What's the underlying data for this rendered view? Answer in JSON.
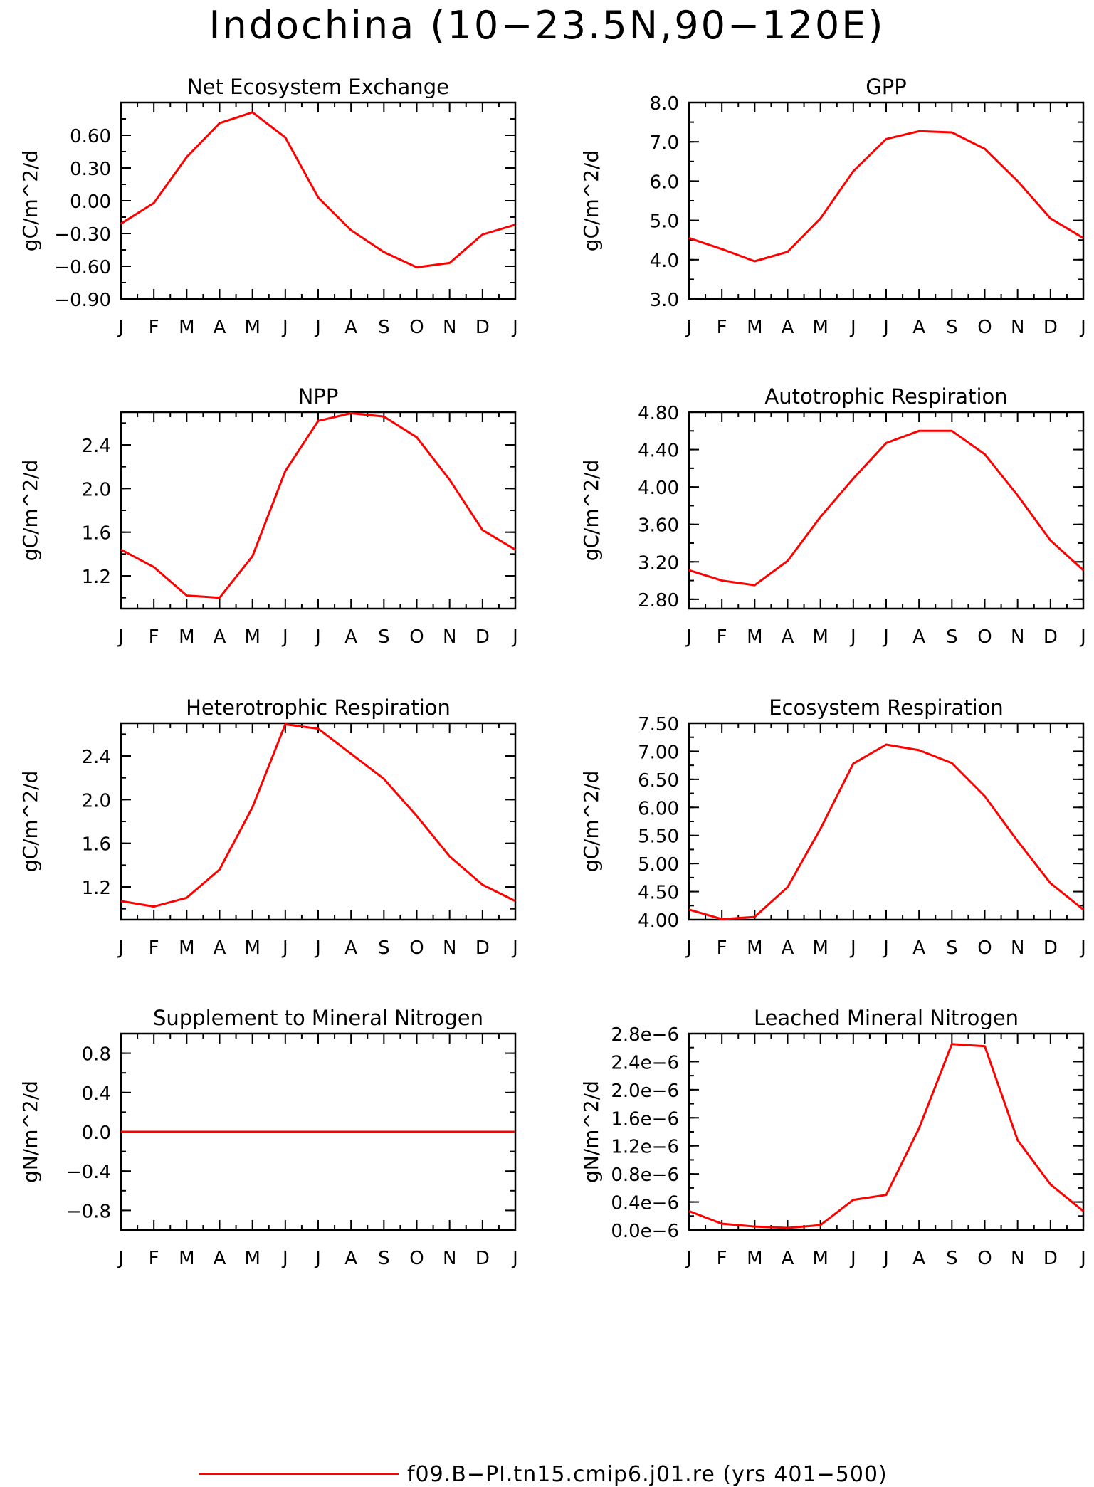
{
  "title": "Indochina (10−23.5N,90−120E)",
  "legend": {
    "label": "f09.B−PI.tn15.cmip6.j01.re (yrs 401−500)",
    "color": "#ff0000"
  },
  "chart_data": [
    {
      "type": "line",
      "title": "Net Ecosystem Exchange",
      "ylabel": "gC/m^2/d",
      "xlabel": "",
      "categories": [
        "J",
        "F",
        "M",
        "A",
        "M",
        "J",
        "J",
        "A",
        "S",
        "O",
        "N",
        "D",
        "J"
      ],
      "ylim": [
        -0.9,
        0.9
      ],
      "yticks": [
        -0.9,
        -0.6,
        -0.3,
        0.0,
        0.3,
        0.6
      ],
      "ytick_labels": [
        "−0.90",
        "−0.60",
        "−0.30",
        "0.00",
        "0.30",
        "0.60"
      ],
      "series": [
        {
          "values": [
            -0.21,
            -0.02,
            0.4,
            0.71,
            0.81,
            0.58,
            0.03,
            -0.27,
            -0.47,
            -0.61,
            -0.57,
            -0.31,
            -0.22
          ],
          "color": "#ff0000"
        }
      ]
    },
    {
      "type": "line",
      "title": "GPP",
      "ylabel": "gC/m^2/d",
      "xlabel": "",
      "categories": [
        "J",
        "F",
        "M",
        "A",
        "M",
        "J",
        "J",
        "A",
        "S",
        "O",
        "N",
        "D",
        "J"
      ],
      "ylim": [
        3.0,
        8.0
      ],
      "yticks": [
        3.0,
        4.0,
        5.0,
        6.0,
        7.0,
        8.0
      ],
      "ytick_labels": [
        "3.0",
        "4.0",
        "5.0",
        "6.0",
        "7.0",
        "8.0"
      ],
      "series": [
        {
          "values": [
            4.55,
            4.27,
            3.96,
            4.2,
            5.05,
            6.25,
            7.07,
            7.27,
            7.24,
            6.82,
            6.0,
            5.05,
            4.55
          ],
          "color": "#ff0000"
        }
      ]
    },
    {
      "type": "line",
      "title": "NPP",
      "ylabel": "gC/m^2/d",
      "xlabel": "",
      "categories": [
        "J",
        "F",
        "M",
        "A",
        "M",
        "J",
        "J",
        "A",
        "S",
        "O",
        "N",
        "D",
        "J"
      ],
      "ylim": [
        0.9,
        2.7
      ],
      "yticks": [
        1.2,
        1.6,
        2.0,
        2.4
      ],
      "ytick_labels": [
        "1.2",
        "1.6",
        "2.0",
        "2.4"
      ],
      "series": [
        {
          "values": [
            1.44,
            1.28,
            1.02,
            1.0,
            1.38,
            2.16,
            2.62,
            2.69,
            2.66,
            2.47,
            2.08,
            1.62,
            1.44
          ],
          "color": "#ff0000"
        }
      ]
    },
    {
      "type": "line",
      "title": "Autotrophic Respiration",
      "ylabel": "gC/m^2/d",
      "xlabel": "",
      "categories": [
        "J",
        "F",
        "M",
        "A",
        "M",
        "J",
        "J",
        "A",
        "S",
        "O",
        "N",
        "D",
        "J"
      ],
      "ylim": [
        2.7,
        4.8
      ],
      "yticks": [
        2.8,
        3.2,
        3.6,
        4.0,
        4.4,
        4.8
      ],
      "ytick_labels": [
        "2.80",
        "3.20",
        "3.60",
        "4.00",
        "4.40",
        "4.80"
      ],
      "series": [
        {
          "values": [
            3.11,
            3.0,
            2.95,
            3.21,
            3.68,
            4.09,
            4.47,
            4.6,
            4.6,
            4.35,
            3.91,
            3.43,
            3.11
          ],
          "color": "#ff0000"
        }
      ]
    },
    {
      "type": "line",
      "title": "Heterotrophic Respiration",
      "ylabel": "gC/m^2/d",
      "xlabel": "",
      "categories": [
        "J",
        "F",
        "M",
        "A",
        "M",
        "J",
        "J",
        "A",
        "S",
        "O",
        "N",
        "D",
        "J"
      ],
      "ylim": [
        0.9,
        2.7
      ],
      "yticks": [
        1.2,
        1.6,
        2.0,
        2.4
      ],
      "ytick_labels": [
        "1.2",
        "1.6",
        "2.0",
        "2.4"
      ],
      "series": [
        {
          "values": [
            1.07,
            1.02,
            1.1,
            1.36,
            1.93,
            2.69,
            2.65,
            2.42,
            2.19,
            1.85,
            1.48,
            1.22,
            1.07
          ],
          "color": "#ff0000"
        }
      ]
    },
    {
      "type": "line",
      "title": "Ecosystem Respiration",
      "ylabel": "gC/m^2/d",
      "xlabel": "",
      "categories": [
        "J",
        "F",
        "M",
        "A",
        "M",
        "J",
        "J",
        "A",
        "S",
        "O",
        "N",
        "D",
        "J"
      ],
      "ylim": [
        4.0,
        7.5
      ],
      "yticks": [
        4.0,
        4.5,
        5.0,
        5.5,
        6.0,
        6.5,
        7.0,
        7.5
      ],
      "ytick_labels": [
        "4.00",
        "4.50",
        "5.00",
        "5.50",
        "6.00",
        "6.50",
        "7.00",
        "7.50"
      ],
      "series": [
        {
          "values": [
            4.18,
            4.01,
            4.05,
            4.58,
            5.62,
            6.78,
            7.12,
            7.02,
            6.79,
            6.2,
            5.4,
            4.65,
            4.18
          ],
          "color": "#ff0000"
        }
      ]
    },
    {
      "type": "line",
      "title": "Supplement to Mineral Nitrogen",
      "ylabel": "gN/m^2/d",
      "xlabel": "",
      "categories": [
        "J",
        "F",
        "M",
        "A",
        "M",
        "J",
        "J",
        "A",
        "S",
        "O",
        "N",
        "D",
        "J"
      ],
      "ylim": [
        -1.0,
        1.0
      ],
      "yticks": [
        -0.8,
        -0.4,
        0.0,
        0.4,
        0.8
      ],
      "ytick_labels": [
        "−0.8",
        "−0.4",
        "0.0",
        "0.4",
        "0.8"
      ],
      "series": [
        {
          "values": [
            0,
            0,
            0,
            0,
            0,
            0,
            0,
            0,
            0,
            0,
            0,
            0,
            0
          ],
          "color": "#ff0000"
        }
      ]
    },
    {
      "type": "line",
      "title": "Leached Mineral Nitrogen",
      "ylabel": "gN/m^2/d",
      "xlabel": "",
      "categories": [
        "J",
        "F",
        "M",
        "A",
        "M",
        "J",
        "J",
        "A",
        "S",
        "O",
        "N",
        "D",
        "J"
      ],
      "ylim": [
        0.0,
        2.8e-06
      ],
      "yticks": [
        0.0,
        4e-07,
        8e-07,
        1.2e-06,
        1.6e-06,
        2e-06,
        2.4e-06,
        2.8e-06
      ],
      "ytick_labels": [
        "0.0e−6",
        "0.4e−6",
        "0.8e−6",
        "1.2e−6",
        "1.6e−6",
        "2.0e−6",
        "2.4e−6",
        "2.8e−6"
      ],
      "series": [
        {
          "values": [
            2.7e-07,
            9e-08,
            5e-08,
            3e-08,
            7e-08,
            4.3e-07,
            5e-07,
            1.45e-06,
            2.65e-06,
            2.62e-06,
            1.28e-06,
            6.5e-07,
            2.7e-07
          ],
          "color": "#ff0000"
        }
      ]
    }
  ]
}
